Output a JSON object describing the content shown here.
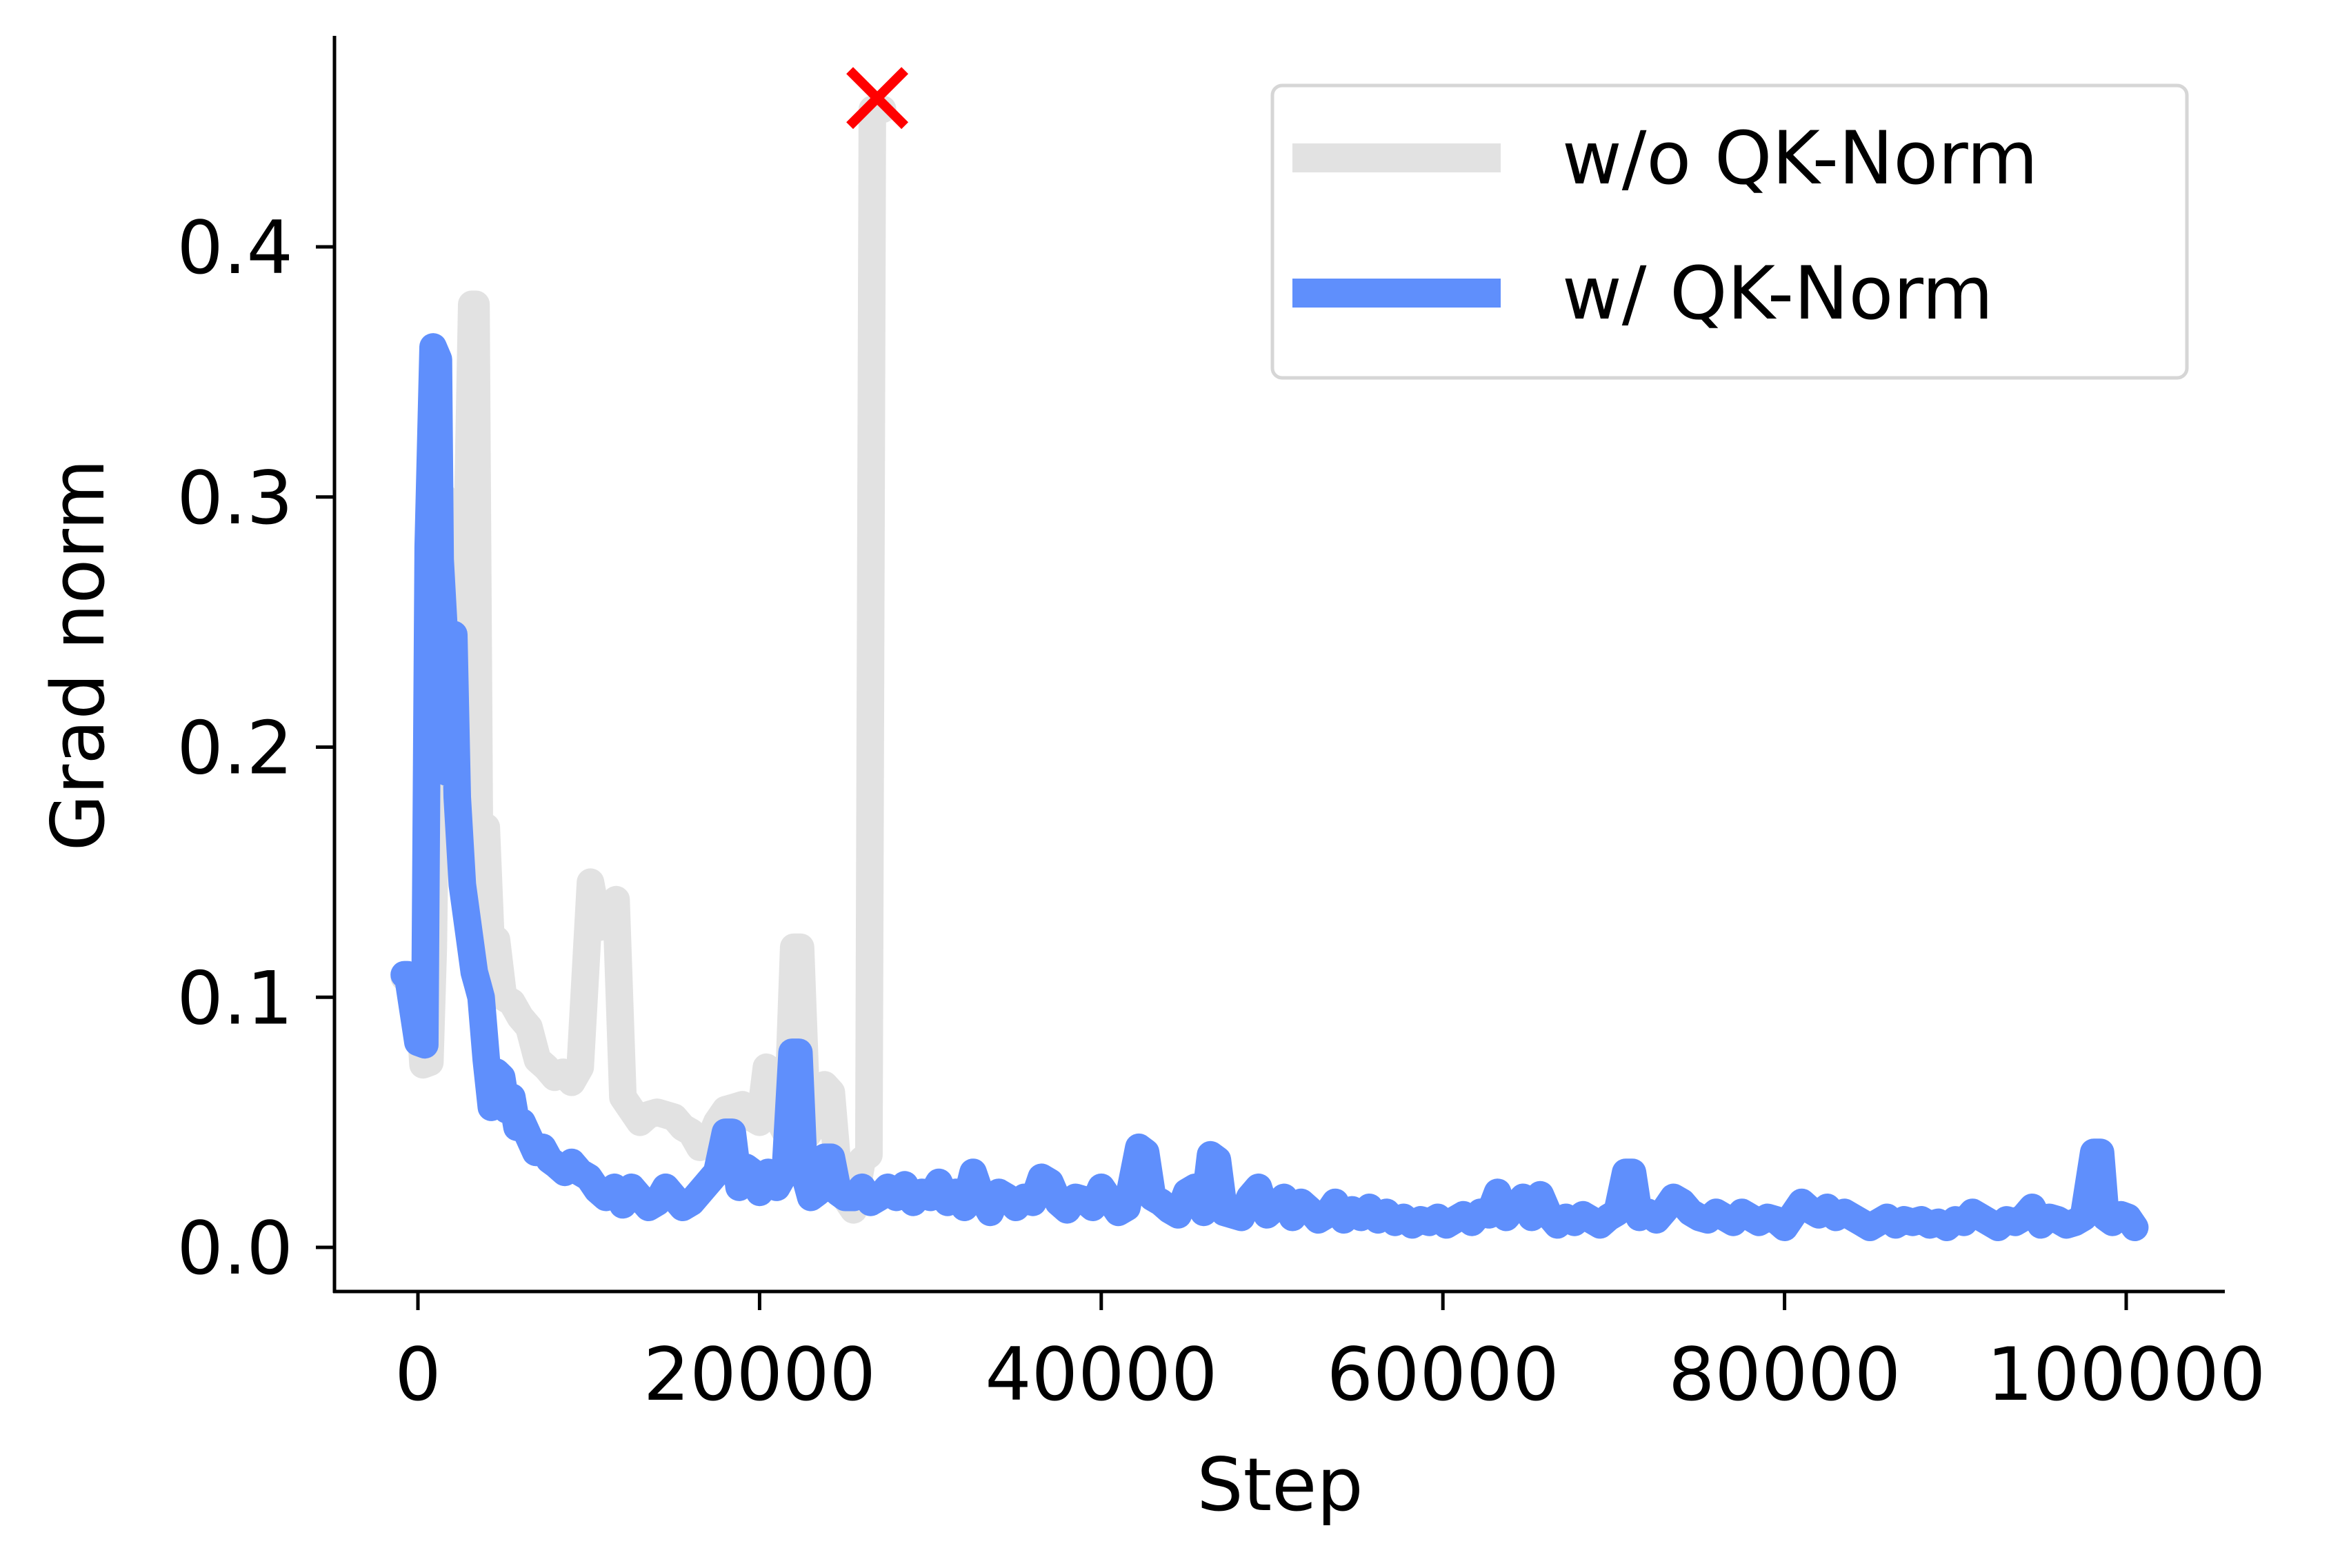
{
  "chart_data": {
    "type": "line",
    "title": "",
    "xlabel": "Step",
    "ylabel": "Grad norm",
    "xlim": [
      -5000,
      105000
    ],
    "ylim": [
      -0.015,
      0.485
    ],
    "xticks": [
      0,
      20000,
      40000,
      60000,
      80000,
      100000
    ],
    "xtick_labels": [
      "0",
      "20000",
      "40000",
      "60000",
      "80000",
      "100000"
    ],
    "yticks": [
      0.0,
      0.1,
      0.2,
      0.3,
      0.4
    ],
    "ytick_labels": [
      "0.0",
      "0.1",
      "0.2",
      "0.3",
      "0.4"
    ],
    "grid": false,
    "legend_position": "upper right",
    "series": [
      {
        "name": "w/o QK-Norm",
        "color": "#e2e2e2",
        "points": [
          [
            -800,
            0.108
          ],
          [
            0,
            0.105
          ],
          [
            300,
            0.073
          ],
          [
            700,
            0.074
          ],
          [
            900,
            0.12
          ],
          [
            1200,
            0.275
          ],
          [
            1500,
            0.3
          ],
          [
            2000,
            0.26
          ],
          [
            2400,
            0.23
          ],
          [
            2800,
            0.255
          ],
          [
            3150,
            0.377
          ],
          [
            3400,
            0.377
          ],
          [
            3600,
            0.16
          ],
          [
            4000,
            0.168
          ],
          [
            4300,
            0.118
          ],
          [
            4600,
            0.123
          ],
          [
            5000,
            0.1
          ],
          [
            5500,
            0.098
          ],
          [
            6000,
            0.092
          ],
          [
            6500,
            0.088
          ],
          [
            7000,
            0.075
          ],
          [
            7500,
            0.072
          ],
          [
            8000,
            0.068
          ],
          [
            8500,
            0.07
          ],
          [
            9000,
            0.066
          ],
          [
            9500,
            0.072
          ],
          [
            10100,
            0.146
          ],
          [
            10600,
            0.128
          ],
          [
            11100,
            0.135
          ],
          [
            11600,
            0.139
          ],
          [
            12000,
            0.06
          ],
          [
            12500,
            0.055
          ],
          [
            13000,
            0.05
          ],
          [
            13500,
            0.053
          ],
          [
            14000,
            0.054
          ],
          [
            14500,
            0.053
          ],
          [
            15000,
            0.052
          ],
          [
            15500,
            0.048
          ],
          [
            16000,
            0.046
          ],
          [
            16500,
            0.04
          ],
          [
            17000,
            0.042
          ],
          [
            17500,
            0.05
          ],
          [
            18000,
            0.055
          ],
          [
            18500,
            0.056
          ],
          [
            19000,
            0.057
          ],
          [
            19500,
            0.052
          ],
          [
            20000,
            0.05
          ],
          [
            20400,
            0.072
          ],
          [
            20800,
            0.07
          ],
          [
            21200,
            0.05
          ],
          [
            21600,
            0.045
          ],
          [
            22000,
            0.12
          ],
          [
            22400,
            0.12
          ],
          [
            22800,
            0.045
          ],
          [
            23300,
            0.05
          ],
          [
            23800,
            0.065
          ],
          [
            24200,
            0.062
          ],
          [
            24600,
            0.03
          ],
          [
            25000,
            0.02
          ],
          [
            25500,
            0.015
          ],
          [
            26000,
            0.035
          ],
          [
            26400,
            0.037
          ],
          [
            26600,
            0.455
          ],
          [
            27200,
            0.455
          ]
        ]
      },
      {
        "name": "w/ QK-Norm",
        "color": "#5f8ffc",
        "points": [
          [
            -800,
            0.109
          ],
          [
            -600,
            0.109
          ],
          [
            0,
            0.082
          ],
          [
            400,
            0.081
          ],
          [
            600,
            0.28
          ],
          [
            890,
            0.36
          ],
          [
            1200,
            0.355
          ],
          [
            1300,
            0.275
          ],
          [
            1500,
            0.25
          ],
          [
            1700,
            0.19
          ],
          [
            1900,
            0.245
          ],
          [
            2100,
            0.245
          ],
          [
            2300,
            0.18
          ],
          [
            2600,
            0.145
          ],
          [
            3000,
            0.125
          ],
          [
            3300,
            0.11
          ],
          [
            3500,
            0.105
          ],
          [
            3700,
            0.1
          ],
          [
            4000,
            0.075
          ],
          [
            4300,
            0.056
          ],
          [
            4600,
            0.07
          ],
          [
            4900,
            0.068
          ],
          [
            5200,
            0.055
          ],
          [
            5500,
            0.06
          ],
          [
            5800,
            0.048
          ],
          [
            6100,
            0.05
          ],
          [
            6500,
            0.044
          ],
          [
            6900,
            0.038
          ],
          [
            7300,
            0.04
          ],
          [
            7700,
            0.035
          ],
          [
            8100,
            0.033
          ],
          [
            8600,
            0.03
          ],
          [
            9000,
            0.034
          ],
          [
            9500,
            0.03
          ],
          [
            10000,
            0.028
          ],
          [
            10500,
            0.023
          ],
          [
            11000,
            0.02
          ],
          [
            11500,
            0.024
          ],
          [
            12000,
            0.017
          ],
          [
            12500,
            0.024
          ],
          [
            13000,
            0.02
          ],
          [
            13500,
            0.016
          ],
          [
            14000,
            0.018
          ],
          [
            14500,
            0.024
          ],
          [
            15000,
            0.02
          ],
          [
            15500,
            0.016
          ],
          [
            16000,
            0.018
          ],
          [
            16500,
            0.022
          ],
          [
            17000,
            0.026
          ],
          [
            17500,
            0.03
          ],
          [
            18000,
            0.046
          ],
          [
            18400,
            0.046
          ],
          [
            18800,
            0.024
          ],
          [
            19200,
            0.032
          ],
          [
            19600,
            0.03
          ],
          [
            20000,
            0.022
          ],
          [
            20500,
            0.03
          ],
          [
            21000,
            0.024
          ],
          [
            21500,
            0.03
          ],
          [
            21900,
            0.078
          ],
          [
            22300,
            0.078
          ],
          [
            22600,
            0.03
          ],
          [
            23000,
            0.02
          ],
          [
            23400,
            0.022
          ],
          [
            23800,
            0.036
          ],
          [
            24200,
            0.036
          ],
          [
            24600,
            0.022
          ],
          [
            25000,
            0.02
          ],
          [
            25500,
            0.02
          ],
          [
            26000,
            0.024
          ],
          [
            26500,
            0.018
          ],
          [
            27000,
            0.02
          ],
          [
            27500,
            0.024
          ],
          [
            28000,
            0.02
          ],
          [
            28500,
            0.025
          ],
          [
            29000,
            0.018
          ],
          [
            29500,
            0.022
          ],
          [
            30000,
            0.02
          ],
          [
            30500,
            0.026
          ],
          [
            31000,
            0.018
          ],
          [
            31500,
            0.022
          ],
          [
            32000,
            0.016
          ],
          [
            32500,
            0.03
          ],
          [
            33000,
            0.02
          ],
          [
            33500,
            0.014
          ],
          [
            34000,
            0.022
          ],
          [
            34500,
            0.02
          ],
          [
            35000,
            0.016
          ],
          [
            35500,
            0.02
          ],
          [
            36000,
            0.018
          ],
          [
            36500,
            0.028
          ],
          [
            37000,
            0.026
          ],
          [
            37500,
            0.018
          ],
          [
            38000,
            0.015
          ],
          [
            38500,
            0.02
          ],
          [
            39000,
            0.019
          ],
          [
            39500,
            0.016
          ],
          [
            40000,
            0.024
          ],
          [
            40500,
            0.019
          ],
          [
            41000,
            0.014
          ],
          [
            41500,
            0.016
          ],
          [
            42200,
            0.04
          ],
          [
            42600,
            0.038
          ],
          [
            43000,
            0.02
          ],
          [
            43500,
            0.018
          ],
          [
            44000,
            0.015
          ],
          [
            44500,
            0.013
          ],
          [
            45000,
            0.022
          ],
          [
            45500,
            0.024
          ],
          [
            46000,
            0.014
          ],
          [
            46400,
            0.037
          ],
          [
            46800,
            0.035
          ],
          [
            47200,
            0.014
          ],
          [
            47700,
            0.013
          ],
          [
            48200,
            0.012
          ],
          [
            48700,
            0.02
          ],
          [
            49200,
            0.024
          ],
          [
            49700,
            0.013
          ],
          [
            50200,
            0.016
          ],
          [
            50700,
            0.02
          ],
          [
            51200,
            0.012
          ],
          [
            51700,
            0.018
          ],
          [
            52200,
            0.015
          ],
          [
            52700,
            0.011
          ],
          [
            53200,
            0.013
          ],
          [
            53700,
            0.018
          ],
          [
            54200,
            0.011
          ],
          [
            54700,
            0.015
          ],
          [
            55200,
            0.012
          ],
          [
            55700,
            0.016
          ],
          [
            56200,
            0.011
          ],
          [
            56700,
            0.014
          ],
          [
            57200,
            0.01
          ],
          [
            57700,
            0.012
          ],
          [
            58200,
            0.009
          ],
          [
            58700,
            0.011
          ],
          [
            59200,
            0.01
          ],
          [
            59700,
            0.012
          ],
          [
            60200,
            0.009
          ],
          [
            60700,
            0.011
          ],
          [
            61200,
            0.013
          ],
          [
            61700,
            0.01
          ],
          [
            62200,
            0.014
          ],
          [
            62700,
            0.013
          ],
          [
            63200,
            0.022
          ],
          [
            63700,
            0.012
          ],
          [
            64200,
            0.016
          ],
          [
            64700,
            0.02
          ],
          [
            65200,
            0.012
          ],
          [
            65700,
            0.021
          ],
          [
            66200,
            0.013
          ],
          [
            66700,
            0.009
          ],
          [
            67200,
            0.012
          ],
          [
            67700,
            0.01
          ],
          [
            68200,
            0.013
          ],
          [
            68700,
            0.011
          ],
          [
            69200,
            0.009
          ],
          [
            69700,
            0.012
          ],
          [
            70200,
            0.014
          ],
          [
            70700,
            0.03
          ],
          [
            71100,
            0.03
          ],
          [
            71500,
            0.012
          ],
          [
            72000,
            0.014
          ],
          [
            72500,
            0.011
          ],
          [
            73000,
            0.015
          ],
          [
            73500,
            0.02
          ],
          [
            74000,
            0.018
          ],
          [
            74500,
            0.014
          ],
          [
            75000,
            0.012
          ],
          [
            75500,
            0.011
          ],
          [
            76000,
            0.014
          ],
          [
            76500,
            0.012
          ],
          [
            77000,
            0.01
          ],
          [
            77500,
            0.014
          ],
          [
            78000,
            0.012
          ],
          [
            78500,
            0.01
          ],
          [
            79000,
            0.012
          ],
          [
            79500,
            0.011
          ],
          [
            80000,
            0.008
          ],
          [
            80500,
            0.013
          ],
          [
            81000,
            0.018
          ],
          [
            81500,
            0.015
          ],
          [
            82000,
            0.013
          ],
          [
            82500,
            0.016
          ],
          [
            83000,
            0.012
          ],
          [
            83500,
            0.014
          ],
          [
            84000,
            0.012
          ],
          [
            84500,
            0.01
          ],
          [
            85000,
            0.008
          ],
          [
            85500,
            0.01
          ],
          [
            86000,
            0.012
          ],
          [
            86500,
            0.009
          ],
          [
            87000,
            0.011
          ],
          [
            87500,
            0.01
          ],
          [
            88000,
            0.011
          ],
          [
            88500,
            0.009
          ],
          [
            89000,
            0.01
          ],
          [
            89500,
            0.008
          ],
          [
            90000,
            0.011
          ],
          [
            90500,
            0.01
          ],
          [
            91000,
            0.014
          ],
          [
            91500,
            0.012
          ],
          [
            92000,
            0.01
          ],
          [
            92500,
            0.008
          ],
          [
            93000,
            0.011
          ],
          [
            93500,
            0.01
          ],
          [
            94000,
            0.012
          ],
          [
            94500,
            0.016
          ],
          [
            95000,
            0.009
          ],
          [
            95500,
            0.012
          ],
          [
            96000,
            0.011
          ],
          [
            96500,
            0.009
          ],
          [
            97000,
            0.01
          ],
          [
            97500,
            0.012
          ],
          [
            98100,
            0.038
          ],
          [
            98500,
            0.038
          ],
          [
            98800,
            0.012
          ],
          [
            99200,
            0.01
          ],
          [
            99700,
            0.013
          ],
          [
            100100,
            0.012
          ],
          [
            100500,
            0.008
          ]
        ]
      }
    ],
    "annotations": [
      {
        "type": "marker",
        "symbol": "x",
        "color": "#ff0000",
        "x": 26890,
        "y": 0.4595,
        "note": "divergence of w/o QK-Norm run"
      }
    ]
  },
  "legend": {
    "items": [
      {
        "label": "w/o QK-Norm",
        "color": "#e2e2e2"
      },
      {
        "label": "w/ QK-Norm",
        "color": "#5f8ffc"
      }
    ]
  },
  "axes": {
    "xlabel": "Step",
    "ylabel": "Grad norm"
  }
}
